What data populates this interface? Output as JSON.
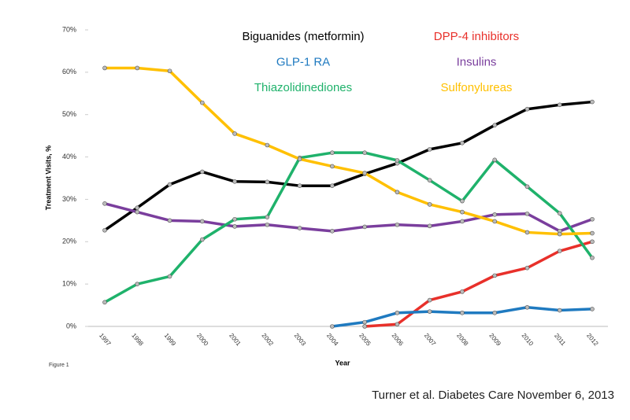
{
  "chart_data": {
    "type": "line",
    "y_label": "Treatment Visits, %",
    "x_label": "Year",
    "note": "Figure 1",
    "source": "Turner et al. Diabetes Care November 6, 2013",
    "categories": [
      "1997",
      "1998",
      "1999",
      "2000",
      "2001",
      "2002",
      "2003",
      "2004",
      "2005",
      "2006",
      "2007",
      "2008",
      "2009",
      "2010",
      "2011",
      "2012"
    ],
    "ylim": [
      0,
      70
    ],
    "yticks": [
      {
        "value": 0,
        "label": "0%"
      },
      {
        "value": 10,
        "label": "10%"
      },
      {
        "value": 20,
        "label": "20%"
      },
      {
        "value": 30,
        "label": "30%"
      },
      {
        "value": 40,
        "label": "40%"
      },
      {
        "value": 50,
        "label": "50%"
      },
      {
        "value": 60,
        "label": "60%"
      },
      {
        "value": 70,
        "label": "70%"
      }
    ],
    "grid": false,
    "series": [
      {
        "name": "Biguanides (metformin)",
        "color": "#000000",
        "values": [
          22.7,
          28,
          33.5,
          36.5,
          34.2,
          34.1,
          33.2,
          33.2,
          36,
          38.5,
          41.8,
          43.3,
          47.5,
          51.3,
          52.3,
          53
        ]
      },
      {
        "name": "DPP-4 inhibitors",
        "color": "#e8302a",
        "values": [
          null,
          null,
          null,
          null,
          null,
          null,
          null,
          null,
          0,
          0.5,
          6.2,
          8.2,
          12,
          13.8,
          17.8,
          20
        ]
      },
      {
        "name": "GLP-1 RA",
        "color": "#1f7ac0",
        "values": [
          null,
          null,
          null,
          null,
          null,
          null,
          null,
          0,
          1,
          3.2,
          3.5,
          3.2,
          3.2,
          4.5,
          3.8,
          4.1
        ]
      },
      {
        "name": "Insulins",
        "color": "#7a3e9d",
        "values": [
          29,
          27,
          25,
          24.8,
          23.6,
          24,
          23.2,
          22.5,
          23.5,
          24,
          23.7,
          24.8,
          26.4,
          26.6,
          22.5,
          25.3
        ]
      },
      {
        "name": "Thiazolidinediones",
        "color": "#1fb26b",
        "values": [
          5.7,
          10,
          11.8,
          20.5,
          25.3,
          25.8,
          39.8,
          41,
          41,
          39.2,
          34.5,
          29.6,
          39.3,
          33,
          26.7,
          16.2
        ]
      },
      {
        "name": "Sulfonylureas",
        "color": "#ffc000",
        "values": [
          61,
          61,
          60.3,
          52.8,
          45.5,
          42.8,
          39.5,
          37.8,
          36.2,
          31.7,
          28.8,
          27,
          24.8,
          22.2,
          21.8,
          22
        ]
      }
    ]
  }
}
